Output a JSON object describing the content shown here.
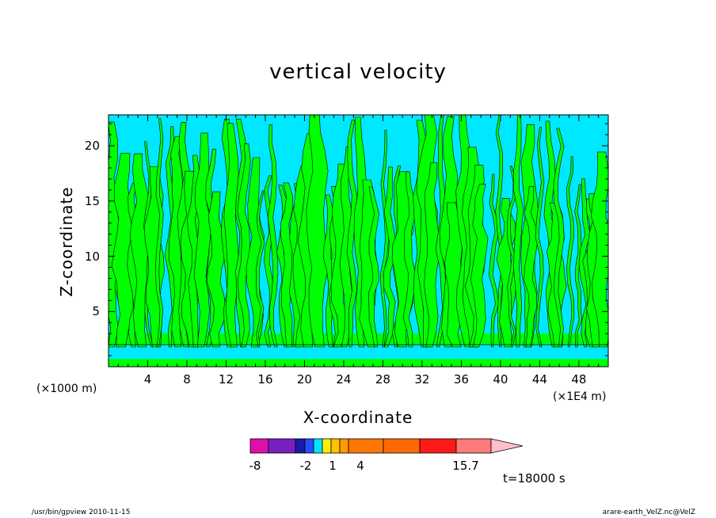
{
  "chart_data": {
    "type": "heatmap",
    "title": "vertical velocity",
    "xlabel": "X-coordinate",
    "ylabel": "Z-coordinate",
    "x_unit_left": "(×1000 m)",
    "x_unit_right": "(×1E4 m)",
    "x_ticks": [
      "4",
      "8",
      "12",
      "16",
      "20",
      "24",
      "28",
      "32",
      "36",
      "40",
      "44",
      "48"
    ],
    "x_tick_values": [
      4,
      8,
      12,
      16,
      20,
      24,
      28,
      32,
      36,
      40,
      44,
      48
    ],
    "y_ticks": [
      "5",
      "10",
      "15",
      "20"
    ],
    "y_tick_values": [
      5,
      10,
      15,
      20
    ],
    "xlim": [
      0,
      51
    ],
    "ylim": [
      0,
      22.8
    ],
    "colorbar": {
      "tick_labels": [
        "-8",
        "-2",
        "1",
        "4",
        "15.7"
      ],
      "tick_values": [
        -8,
        -2,
        1,
        4,
        15.7
      ],
      "segment_colors": [
        "#dd11aa",
        "#7a1fbf",
        "#1a1aa8",
        "#2a4cff",
        "#00e5ff",
        "#ffee00",
        "#ffc400",
        "#ff9a00",
        "#ff7700",
        "#ff6a00",
        "#ff1a1a",
        "#ff7a7a",
        "#ffbfc8"
      ]
    },
    "fill_colors": {
      "positive": "#00ff00",
      "negative": "#00e8ff"
    },
    "time_label": "t=18000 s"
  },
  "footer": {
    "left": "/usr/bin/gpview   2010-11-15",
    "right": "arare-earth_VelZ.nc@VelZ"
  }
}
